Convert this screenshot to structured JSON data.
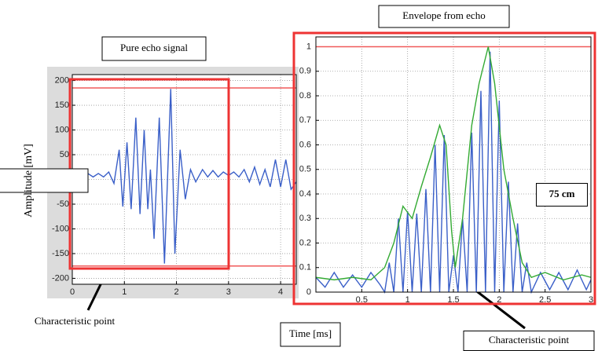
{
  "chart_data": [
    {
      "type": "line",
      "title": "Pure echo signal",
      "y_label": "Amplitude [mV]",
      "x_label": "Time [ms]",
      "xlim": [
        0,
        4.3
      ],
      "ylim": [
        -212,
        212
      ],
      "xticks": [
        0,
        1,
        2,
        3,
        4
      ],
      "yticks": [
        -200,
        -150,
        -100,
        -50,
        0,
        50,
        100,
        150,
        200
      ],
      "grid": true,
      "hlines": {
        "color": "#f05a5a",
        "values": [
          185,
          -175
        ]
      },
      "series": [
        {
          "color": "#3a5fc8",
          "x": [
            0,
            0.1,
            0.2,
            0.3,
            0.4,
            0.5,
            0.6,
            0.7,
            0.8,
            0.9,
            0.97,
            1.05,
            1.13,
            1.22,
            1.3,
            1.38,
            1.45,
            1.5,
            1.57,
            1.67,
            1.77,
            1.89,
            1.97,
            2.07,
            2.17,
            2.27,
            2.37,
            2.5,
            2.6,
            2.7,
            2.8,
            2.9,
            3.0,
            3.1,
            3.2,
            3.3,
            3.4,
            3.5,
            3.6,
            3.7,
            3.8,
            3.9,
            4.0,
            4.1,
            4.2,
            4.3
          ],
          "values": [
            5,
            12,
            5,
            12,
            5,
            12,
            5,
            15,
            -8,
            60,
            -55,
            75,
            -60,
            125,
            -70,
            100,
            -60,
            20,
            -120,
            125,
            -170,
            183,
            -150,
            60,
            -40,
            20,
            -5,
            20,
            5,
            18,
            5,
            15,
            8,
            15,
            5,
            20,
            -5,
            25,
            -10,
            20,
            -15,
            40,
            -15,
            40,
            -20,
            -5
          ]
        }
      ],
      "annotations": [
        "Characteristic point"
      ]
    },
    {
      "type": "line",
      "title": "Envelope from echo",
      "xlim": [
        0,
        3
      ],
      "ylim": [
        0,
        1.04
      ],
      "xticks": [
        0.5,
        1,
        1.5,
        2,
        2.5,
        3
      ],
      "yticks": [
        0,
        0.1,
        0.2,
        0.3,
        0.4,
        0.5,
        0.6,
        0.7,
        0.8,
        0.9,
        1
      ],
      "grid": true,
      "hlines": {
        "color": "#f05a5a",
        "values": [
          1
        ]
      },
      "series": [
        {
          "color": "#3a5fc8",
          "x": [
            0,
            0.1,
            0.2,
            0.3,
            0.4,
            0.5,
            0.6,
            0.7,
            0.75,
            0.8,
            0.85,
            0.9,
            0.95,
            1.0,
            1.05,
            1.1,
            1.15,
            1.2,
            1.25,
            1.3,
            1.35,
            1.4,
            1.45,
            1.5,
            1.55,
            1.6,
            1.65,
            1.7,
            1.75,
            1.8,
            1.85,
            1.9,
            1.95,
            2.0,
            2.05,
            2.1,
            2.15,
            2.2,
            2.25,
            2.3,
            2.35,
            2.45,
            2.55,
            2.65,
            2.75,
            2.85,
            2.95,
            3.0
          ],
          "values": [
            0.06,
            0.02,
            0.08,
            0.02,
            0.07,
            0.02,
            0.08,
            0.03,
            0,
            0.12,
            0,
            0.3,
            0,
            0.33,
            0,
            0.32,
            0,
            0.42,
            0,
            0.6,
            0,
            0.64,
            0,
            0.15,
            0,
            0.3,
            0,
            0.65,
            0,
            0.82,
            0,
            0.98,
            0,
            0.78,
            0,
            0.45,
            0,
            0.28,
            0,
            0.12,
            0,
            0.08,
            0.01,
            0.08,
            0.01,
            0.09,
            0.01,
            0.05
          ]
        },
        {
          "color": "#33aa33",
          "x": [
            0,
            0.2,
            0.4,
            0.6,
            0.75,
            0.85,
            0.95,
            1.05,
            1.15,
            1.25,
            1.35,
            1.42,
            1.48,
            1.52,
            1.6,
            1.7,
            1.78,
            1.88,
            1.95,
            2.05,
            2.15,
            2.25,
            2.35,
            2.5,
            2.7,
            2.9,
            3.0
          ],
          "values": [
            0.06,
            0.05,
            0.06,
            0.05,
            0.1,
            0.2,
            0.35,
            0.3,
            0.43,
            0.55,
            0.68,
            0.6,
            0.25,
            0.1,
            0.3,
            0.68,
            0.85,
            1.0,
            0.85,
            0.5,
            0.3,
            0.12,
            0.06,
            0.08,
            0.05,
            0.07,
            0.06
          ]
        }
      ],
      "annotations": [
        "75 cm",
        "Characteristic point"
      ]
    }
  ]
}
